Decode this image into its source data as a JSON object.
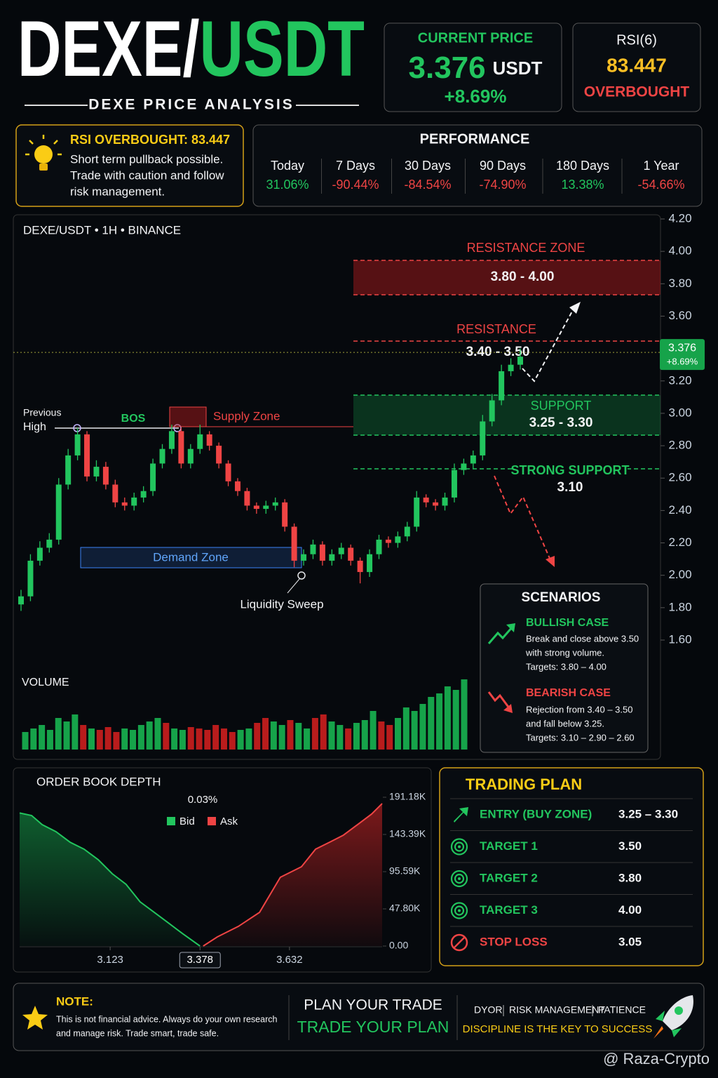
{
  "header": {
    "title_base": "DEXE/",
    "title_quote": "USDT",
    "subtitle": "DEXE PRICE ANALYSIS"
  },
  "price_card": {
    "label": "CURRENT PRICE",
    "price": "3.376",
    "unit": "USDT",
    "change": "+8.69%"
  },
  "rsi_card": {
    "label": "RSI(6)",
    "value": "83.447",
    "status": "OVERBOUGHT"
  },
  "alert": {
    "title": "RSI OVERBOUGHT: 83.447",
    "lines": [
      "Short term pullback possible.",
      "Trade with caution and follow",
      "risk management."
    ]
  },
  "performance": {
    "title": "PERFORMANCE",
    "periods": [
      {
        "label": "Today",
        "value": "31.06%"
      },
      {
        "label": "7 Days",
        "value": "-90.44%"
      },
      {
        "label": "30 Days",
        "value": "-84.54%"
      },
      {
        "label": "90 Days",
        "value": "-74.90%"
      },
      {
        "label": "180 Days",
        "value": "13.38%"
      },
      {
        "label": "1 Year",
        "value": "-54.66%"
      }
    ]
  },
  "chart_data": [
    {
      "type": "candlestick",
      "title": "DEXE/USDT • 1H • BINANCE",
      "open": [
        1.82,
        1.87,
        2.09,
        2.17,
        2.22,
        2.56,
        2.74,
        2.87,
        2.61,
        2.67,
        2.56,
        2.45,
        2.43,
        2.48,
        2.52,
        2.69,
        2.78,
        2.89,
        2.69,
        2.78,
        2.87,
        2.8,
        2.69,
        2.58,
        2.52,
        2.43,
        2.41,
        2.43,
        2.45,
        2.3,
        2.09,
        2.13,
        2.19,
        2.09,
        2.13,
        2.17,
        2.09,
        2.02,
        2.13,
        2.22,
        2.2,
        2.24,
        2.3,
        2.48,
        2.45,
        2.43,
        2.48,
        2.65,
        2.69,
        2.74,
        2.95,
        3.08,
        3.26,
        3.3
      ],
      "high": [
        1.91,
        2.13,
        2.21,
        2.26,
        2.6,
        2.78,
        2.91,
        2.89,
        2.71,
        2.7,
        2.59,
        2.48,
        2.51,
        2.55,
        2.72,
        2.81,
        2.93,
        2.91,
        2.81,
        2.93,
        2.89,
        2.82,
        2.71,
        2.6,
        2.54,
        2.45,
        2.46,
        2.48,
        2.47,
        2.32,
        2.16,
        2.22,
        2.21,
        2.16,
        2.2,
        2.19,
        2.11,
        2.16,
        2.25,
        2.24,
        2.27,
        2.33,
        2.52,
        2.5,
        2.47,
        2.51,
        2.69,
        2.72,
        2.77,
        2.99,
        3.12,
        3.3,
        3.34,
        3.4
      ],
      "low": [
        1.78,
        1.84,
        2.06,
        2.14,
        2.19,
        2.53,
        2.71,
        2.58,
        2.58,
        2.53,
        2.42,
        2.4,
        2.4,
        2.45,
        2.49,
        2.66,
        2.75,
        2.66,
        2.66,
        2.75,
        2.77,
        2.66,
        2.55,
        2.49,
        2.4,
        2.38,
        2.38,
        2.4,
        2.27,
        2.05,
        2.06,
        2.1,
        2.06,
        2.06,
        2.1,
        2.06,
        1.95,
        1.99,
        2.1,
        2.17,
        2.17,
        2.21,
        2.27,
        2.42,
        2.4,
        2.4,
        2.45,
        2.62,
        2.66,
        2.71,
        2.92,
        3.05,
        3.23,
        3.27
      ],
      "close": [
        1.87,
        2.09,
        2.17,
        2.22,
        2.56,
        2.74,
        2.87,
        2.61,
        2.67,
        2.56,
        2.45,
        2.43,
        2.48,
        2.52,
        2.69,
        2.78,
        2.89,
        2.69,
        2.78,
        2.87,
        2.8,
        2.69,
        2.58,
        2.52,
        2.43,
        2.41,
        2.43,
        2.45,
        2.3,
        2.09,
        2.13,
        2.19,
        2.09,
        2.13,
        2.17,
        2.09,
        2.02,
        2.13,
        2.22,
        2.2,
        2.24,
        2.3,
        2.48,
        2.45,
        2.43,
        2.48,
        2.65,
        2.69,
        2.74,
        2.95,
        3.08,
        3.26,
        3.3,
        3.35
      ],
      "up_color": "#22c55e",
      "down_color": "#ef4444",
      "ylim": [
        1.6,
        4.2
      ],
      "yticks": [
        {
          "value": 4.2,
          "label": "4.20"
        },
        {
          "value": 4.0,
          "label": "4.00"
        },
        {
          "value": 3.8,
          "label": "3.80"
        },
        {
          "value": 3.6,
          "label": "3.60"
        },
        {
          "value": 3.4,
          "label": "3.40"
        },
        {
          "value": 3.2,
          "label": "3.20"
        },
        {
          "value": 3.0,
          "label": "3.00"
        },
        {
          "value": 2.8,
          "label": "2.80"
        },
        {
          "value": 2.6,
          "label": "2.60"
        },
        {
          "value": 2.4,
          "label": "2.40"
        },
        {
          "value": 2.2,
          "label": "2.20"
        },
        {
          "value": 2.0,
          "label": "2.00"
        },
        {
          "value": 1.8,
          "label": "1.80"
        },
        {
          "value": 1.6,
          "label": "1.60"
        }
      ],
      "current_price": 3.376,
      "change": "+8.69%",
      "annotations": {
        "previous_high": [
          "Previous",
          "High"
        ],
        "bos": "BOS",
        "supply_zone": "Supply Zone",
        "demand_zone": "Demand Zone",
        "liquidity_sweep": "Liquidity Sweep",
        "resistance_zone": {
          "label": "RESISTANCE ZONE",
          "range": "3.80 - 4.00"
        },
        "resistance": {
          "label": "RESISTANCE",
          "range": "3.40 - 3.50"
        },
        "support": {
          "label": "SUPPORT",
          "range": "3.25 - 3.30"
        },
        "strong_support": {
          "label": "STRONG SUPPORT",
          "range": "3.10"
        }
      }
    },
    {
      "type": "bar",
      "title": "VOLUME",
      "values": [
        25,
        30,
        35,
        28,
        45,
        40,
        50,
        35,
        30,
        28,
        32,
        25,
        30,
        28,
        35,
        40,
        45,
        38,
        30,
        28,
        32,
        30,
        28,
        35,
        30,
        25,
        28,
        30,
        38,
        45,
        40,
        35,
        42,
        38,
        30,
        45,
        50,
        40,
        35,
        30,
        38,
        42,
        55,
        40,
        35,
        45,
        60,
        55,
        65,
        75,
        80,
        90,
        85,
        100
      ],
      "ylim": [
        0,
        110
      ]
    },
    {
      "type": "depth",
      "title": "ORDER BOOK DEPTH",
      "spread": "0.03%",
      "series": [
        {
          "name": "Bid",
          "color": "#22c55e",
          "x": [
            2.866,
            2.9,
            2.93,
            2.969,
            3.009,
            3.049,
            3.089,
            3.129,
            3.168,
            3.208,
            3.248,
            3.288,
            3.328,
            3.378
          ],
          "values": [
            171000,
            167700,
            156000,
            147000,
            133500,
            124500,
            111000,
            92900,
            79400,
            56800,
            43300,
            29800,
            16200,
            0
          ]
        },
        {
          "name": "Ask",
          "color": "#ef4444",
          "x": [
            3.387,
            3.427,
            3.487,
            3.547,
            3.606,
            3.666,
            3.706,
            3.746,
            3.785,
            3.825,
            3.865,
            3.895
          ],
          "values": [
            0,
            11700,
            25300,
            43300,
            88400,
            101900,
            124500,
            133500,
            142500,
            156000,
            169600,
            183100
          ]
        }
      ],
      "xlim": [
        2.866,
        3.895
      ],
      "xticks": [
        3.123,
        3.378,
        3.632
      ],
      "ylim": [
        0,
        191180
      ],
      "yticks": [
        {
          "value": 191180,
          "label": "191.18K"
        },
        {
          "value": 143390,
          "label": "143.39K"
        },
        {
          "value": 95590,
          "label": "95.59K"
        },
        {
          "value": 47800,
          "label": "47.80K"
        },
        {
          "value": 0,
          "label": "0.00"
        }
      ]
    }
  ],
  "scenarios": {
    "title": "SCENARIOS",
    "bullish": {
      "title": "BULLISH CASE",
      "lines": [
        "Break and close above 3.50",
        "with strong volume.",
        "Targets: 3.80 – 4.00"
      ]
    },
    "bearish": {
      "title": "BEARISH CASE",
      "lines": [
        "Rejection from 3.40 – 3.50",
        "and fall below 3.25.",
        "Targets: 3.10 – 2.90 – 2.60"
      ]
    }
  },
  "trading_plan": {
    "title": "TRADING PLAN",
    "rows": [
      {
        "label": "ENTRY (BUY ZONE)",
        "value": "3.25 – 3.30"
      },
      {
        "label": "TARGET 1",
        "value": "3.50"
      },
      {
        "label": "TARGET 2",
        "value": "3.80"
      },
      {
        "label": "TARGET 3",
        "value": "4.00"
      },
      {
        "label": "STOP LOSS",
        "value": "3.05"
      }
    ]
  },
  "footer": {
    "note_title": "NOTE:",
    "note_lines": [
      "This is not financial advice. Always do your own research",
      "and manage risk. Trade smart, trade safe."
    ],
    "slogan": [
      "PLAN YOUR TRADE",
      "TRADE YOUR PLAN"
    ],
    "tags": [
      "DYOR",
      "RISK MANAGEMENT",
      "PATIENCE"
    ],
    "tagline": "DISCIPLINE IS THE KEY TO SUCCESS"
  },
  "watermark": "@ Raza-Crypto"
}
